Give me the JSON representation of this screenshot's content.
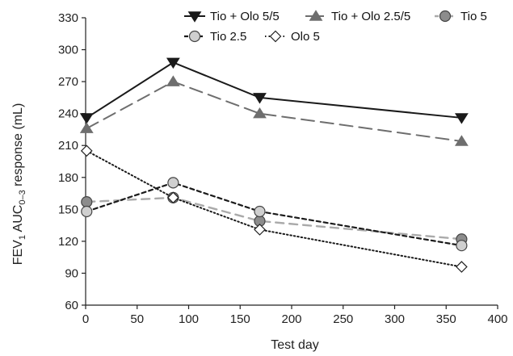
{
  "chart_data": {
    "type": "line",
    "xlabel": "Test day",
    "ylabel": {
      "prefix": "FEV",
      "sub1": "1",
      "mid": " AUC",
      "sub2": "0–3",
      "suffix": " response (mL)"
    },
    "xlim": [
      0,
      400
    ],
    "ylim": [
      60,
      330
    ],
    "xticks": [
      0,
      50,
      100,
      150,
      200,
      250,
      300,
      350,
      400
    ],
    "yticks": [
      60,
      90,
      120,
      150,
      180,
      210,
      240,
      270,
      300,
      330
    ],
    "grid": false,
    "legend": "top-right",
    "series": [
      {
        "name": "Tio + Olo 5/5",
        "x": [
          1,
          85,
          169,
          365
        ],
        "y": [
          236,
          288,
          255,
          236
        ],
        "line": "solid",
        "color": "#1a1a1a",
        "marker": "triangle-down",
        "marker_fill": "#1a1a1a"
      },
      {
        "name": "Tio + Olo 2.5/5",
        "x": [
          1,
          85,
          169,
          365
        ],
        "y": [
          226,
          270,
          240,
          214
        ],
        "line": "long-dash",
        "color": "#6e6e6e",
        "marker": "triangle-up",
        "marker_fill": "#6e6e6e"
      },
      {
        "name": "Tio 5",
        "x": [
          1,
          85,
          169,
          365
        ],
        "y": [
          157,
          161,
          139,
          122
        ],
        "line": "dash",
        "color": "#aaaaaa",
        "marker": "circle",
        "marker_fill": "#8c8c8c"
      },
      {
        "name": "Tio 2.5",
        "x": [
          1,
          85,
          169,
          365
        ],
        "y": [
          148,
          175,
          148,
          116
        ],
        "line": "short-dash",
        "color": "#1a1a1a",
        "marker": "circle",
        "marker_fill": "#cfcfcf"
      },
      {
        "name": "Olo 5",
        "x": [
          1,
          85,
          169,
          365
        ],
        "y": [
          205,
          161,
          131,
          96
        ],
        "line": "dotted",
        "color": "#1a1a1a",
        "marker": "diamond",
        "marker_fill": "#ffffff"
      }
    ]
  }
}
